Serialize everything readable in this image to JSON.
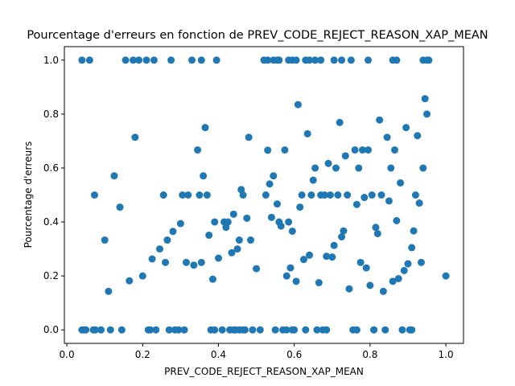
{
  "chart_data": {
    "type": "scatter",
    "title": "Pourcentage d'erreurs en fonction de PREV_CODE_REJECT_REASON_XAP_MEAN",
    "xlabel": "PREV_CODE_REJECT_REASON_XAP_MEAN",
    "ylabel": "Pourcentage d'erreurs",
    "xlim": [
      -0.0065,
      1.0465
    ],
    "ylim": [
      -0.05,
      1.05
    ],
    "xticks": [
      "0.0",
      "0.2",
      "0.4",
      "0.6",
      "0.8",
      "1.0"
    ],
    "xtick_values": [
      0,
      0.2,
      0.4,
      0.6,
      0.8,
      1.0
    ],
    "yticks": [
      "0.0",
      "0.2",
      "0.4",
      "0.6",
      "0.8",
      "1.0"
    ],
    "ytick_values": [
      0,
      0.2,
      0.4,
      0.6,
      0.8,
      1.0
    ],
    "grid": false,
    "legend": "none",
    "marker_color": "#1f77b4",
    "points": [
      [
        0.04,
        1.0
      ],
      [
        0.04,
        0.0
      ],
      [
        0.045,
        0.0
      ],
      [
        0.07,
        0.0
      ],
      [
        0.073,
        0.5
      ],
      [
        0.075,
        0.0
      ],
      [
        0.09,
        0.0
      ],
      [
        0.1,
        0.333
      ],
      [
        0.11,
        0.143
      ],
      [
        0.115,
        0.0
      ],
      [
        0.125,
        0.571
      ],
      [
        0.14,
        0.455
      ],
      [
        0.145,
        0.0
      ],
      [
        0.155,
        1.0
      ],
      [
        0.165,
        0.182
      ],
      [
        0.175,
        1.0
      ],
      [
        0.18,
        0.714
      ],
      [
        0.19,
        1.0
      ],
      [
        0.2,
        0.2
      ],
      [
        0.21,
        1.0
      ],
      [
        0.215,
        0.0
      ],
      [
        0.22,
        0.0
      ],
      [
        0.225,
        0.263
      ],
      [
        0.23,
        1.0
      ],
      [
        0.235,
        0.0
      ],
      [
        0.245,
        0.3
      ],
      [
        0.255,
        0.5
      ],
      [
        0.26,
        0.25
      ],
      [
        0.265,
        0.333
      ],
      [
        0.275,
        1.0
      ],
      [
        0.28,
        0.365
      ],
      [
        0.285,
        0.0
      ],
      [
        0.295,
        0.0
      ],
      [
        0.3,
        0.394
      ],
      [
        0.305,
        0.5
      ],
      [
        0.31,
        0.0
      ],
      [
        0.315,
        0.25
      ],
      [
        0.32,
        0.5
      ],
      [
        0.335,
        0.24
      ],
      [
        0.345,
        0.667
      ],
      [
        0.35,
        0.5
      ],
      [
        0.355,
        0.25
      ],
      [
        0.36,
        0.571
      ],
      [
        0.365,
        0.75
      ],
      [
        0.37,
        0.5
      ],
      [
        0.375,
        0.351
      ],
      [
        0.38,
        0.0
      ],
      [
        0.385,
        0.188
      ],
      [
        0.39,
        0.4
      ],
      [
        0.395,
        1.0
      ],
      [
        0.4,
        0.266
      ],
      [
        0.41,
        0.0
      ],
      [
        0.415,
        0.4
      ],
      [
        0.42,
        0.38
      ],
      [
        0.425,
        0.4
      ],
      [
        0.43,
        0.0
      ],
      [
        0.435,
        0.286
      ],
      [
        0.44,
        0.429
      ],
      [
        0.445,
        0.0
      ],
      [
        0.45,
        0.3
      ],
      [
        0.455,
        0.333
      ],
      [
        0.46,
        0.52
      ],
      [
        0.465,
        0.5
      ],
      [
        0.47,
        0.0
      ],
      [
        0.475,
        0.414
      ],
      [
        0.48,
        0.714
      ],
      [
        0.485,
        0.333
      ],
      [
        0.49,
        0.0
      ],
      [
        0.5,
        0.227
      ],
      [
        0.51,
        0.0
      ],
      [
        0.52,
        1.0
      ],
      [
        0.525,
        0.5
      ],
      [
        0.53,
        0.666
      ],
      [
        0.535,
        0.541
      ],
      [
        0.54,
        0.417
      ],
      [
        0.545,
        0.571
      ],
      [
        0.55,
        0.0
      ],
      [
        0.555,
        0.467
      ],
      [
        0.56,
        0.4
      ],
      [
        0.565,
        0.385
      ],
      [
        0.57,
        0.0
      ],
      [
        0.575,
        0.667
      ],
      [
        0.58,
        0.2
      ],
      [
        0.585,
        0.4
      ],
      [
        0.59,
        0.23
      ],
      [
        0.595,
        0.366
      ],
      [
        0.6,
        0.0
      ],
      [
        0.605,
        0.18
      ],
      [
        0.61,
        0.835
      ],
      [
        0.615,
        0.455
      ],
      [
        0.62,
        0.5
      ],
      [
        0.625,
        0.261
      ],
      [
        0.63,
        1.0
      ],
      [
        0.635,
        0.727
      ],
      [
        0.64,
        0.277
      ],
      [
        0.645,
        0.5
      ],
      [
        0.65,
        0.555
      ],
      [
        0.655,
        0.6
      ],
      [
        0.66,
        0.0
      ],
      [
        0.665,
        0.175
      ],
      [
        0.67,
        0.5
      ],
      [
        0.675,
        0.0
      ],
      [
        0.68,
        0.5
      ],
      [
        0.685,
        0.273
      ],
      [
        0.69,
        0.617
      ],
      [
        0.695,
        0.5
      ],
      [
        0.7,
        0.27
      ],
      [
        0.705,
        0.313
      ],
      [
        0.71,
        0.6
      ],
      [
        0.715,
        0.5
      ],
      [
        0.72,
        0.769
      ],
      [
        0.725,
        0.345
      ],
      [
        0.73,
        0.367
      ],
      [
        0.735,
        0.645
      ],
      [
        0.74,
        0.5
      ],
      [
        0.745,
        0.152
      ],
      [
        0.75,
        1.0
      ],
      [
        0.755,
        0.0
      ],
      [
        0.76,
        0.667
      ],
      [
        0.765,
        0.465
      ],
      [
        0.77,
        0.6
      ],
      [
        0.775,
        0.25
      ],
      [
        0.78,
        0.667
      ],
      [
        0.785,
        0.491
      ],
      [
        0.79,
        0.23
      ],
      [
        0.795,
        0.667
      ],
      [
        0.8,
        0.165
      ],
      [
        0.805,
        0.5
      ],
      [
        0.81,
        0.0
      ],
      [
        0.815,
        0.38
      ],
      [
        0.82,
        0.357
      ],
      [
        0.825,
        0.778
      ],
      [
        0.83,
        0.5
      ],
      [
        0.835,
        0.143
      ],
      [
        0.84,
        0.0
      ],
      [
        0.845,
        0.714
      ],
      [
        0.85,
        0.478
      ],
      [
        0.855,
        0.6
      ],
      [
        0.86,
        0.18
      ],
      [
        0.865,
        0.667
      ],
      [
        0.87,
        0.405
      ],
      [
        0.875,
        0.19
      ],
      [
        0.88,
        0.545
      ],
      [
        0.885,
        0.0
      ],
      [
        0.89,
        0.22
      ],
      [
        0.895,
        0.75
      ],
      [
        0.9,
        0.245
      ],
      [
        0.905,
        0.0
      ],
      [
        0.91,
        0.305
      ],
      [
        0.915,
        0.367
      ],
      [
        0.92,
        0.5
      ],
      [
        0.925,
        0.72
      ],
      [
        0.93,
        0.47
      ],
      [
        0.935,
        0.25
      ],
      [
        0.94,
        0.6
      ],
      [
        0.945,
        0.857
      ],
      [
        0.95,
        0.8
      ],
      [
        0.955,
        1.0
      ],
      [
        1.0,
        0.2
      ],
      [
        0.05,
        0.0
      ],
      [
        0.06,
        1.0
      ],
      [
        0.27,
        0.0
      ],
      [
        0.33,
        1.0
      ],
      [
        0.355,
        1.0
      ],
      [
        0.39,
        0.0
      ],
      [
        0.44,
        0.0
      ],
      [
        0.455,
        0.0
      ],
      [
        0.465,
        0.0
      ],
      [
        0.53,
        1.0
      ],
      [
        0.545,
        1.0
      ],
      [
        0.555,
        1.0
      ],
      [
        0.56,
        1.0
      ],
      [
        0.585,
        1.0
      ],
      [
        0.595,
        1.0
      ],
      [
        0.605,
        1.0
      ],
      [
        0.64,
        1.0
      ],
      [
        0.655,
        1.0
      ],
      [
        0.67,
        1.0
      ],
      [
        0.705,
        1.0
      ],
      [
        0.725,
        1.0
      ],
      [
        0.795,
        1.0
      ],
      [
        0.86,
        1.0
      ],
      [
        0.87,
        1.0
      ],
      [
        0.94,
        1.0
      ],
      [
        0.95,
        1.0
      ],
      [
        0.58,
        0.0
      ],
      [
        0.595,
        0.0
      ],
      [
        0.63,
        0.0
      ],
      [
        0.685,
        0.0
      ],
      [
        0.765,
        0.0
      ],
      [
        0.81,
        0.0
      ],
      [
        0.91,
        0.0
      ]
    ]
  }
}
